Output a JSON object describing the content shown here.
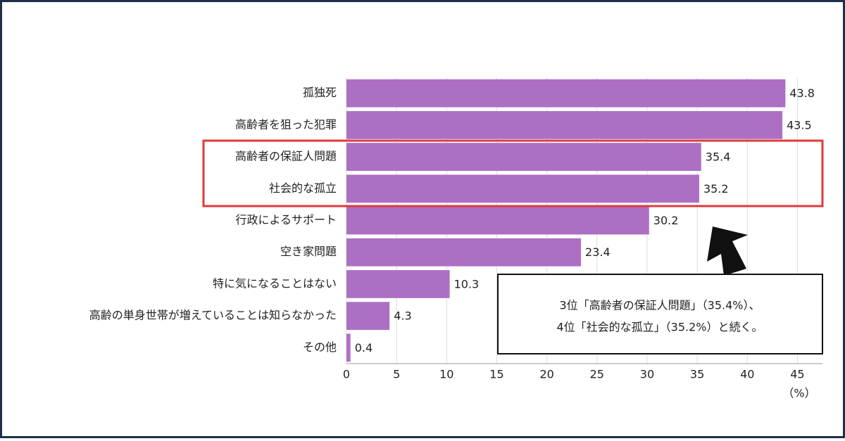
{
  "chart_data": {
    "type": "bar",
    "orientation": "horizontal",
    "categories": [
      "孤独死",
      "高齢者を狙った犯罪",
      "高齢者の保証人問題",
      "社会的な孤立",
      "行政によるサポート",
      "空き家問題",
      "特に気になることはない",
      "高齢の単身世帯が増えていることは知らなかった",
      "その他"
    ],
    "values": [
      43.8,
      43.5,
      35.4,
      35.2,
      30.2,
      23.4,
      10.3,
      4.3,
      0.4
    ],
    "color": "#ad6fc4",
    "xlim": [
      0,
      47.5
    ],
    "xticks": [
      0,
      5,
      10,
      15,
      20,
      25,
      30,
      35,
      40,
      45
    ],
    "grid": true,
    "x_unit_label": "（%）",
    "annotation": {
      "lines": [
        "3位「高齢者の保証人問題」（35.4%）、",
        "4位「社会的な孤立」（35.2%）と続く。"
      ]
    }
  }
}
